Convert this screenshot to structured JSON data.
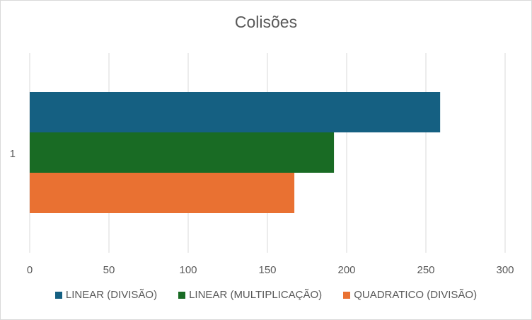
{
  "chart_data": {
    "type": "bar",
    "orientation": "horizontal",
    "title": "Colisões",
    "categories": [
      "1"
    ],
    "series": [
      {
        "name": "LINEAR (DIVISÃO)",
        "values": [
          259
        ],
        "color": "#156082"
      },
      {
        "name": "LINEAR (MULTIPLICAÇÃO)",
        "values": [
          192
        ],
        "color": "#196b24"
      },
      {
        "name": "QUADRATICO (DIVISÃO)",
        "values": [
          167
        ],
        "color": "#e97132"
      }
    ],
    "xlim": [
      0,
      300
    ],
    "xticks": [
      "0",
      "50",
      "100",
      "150",
      "200",
      "250",
      "300"
    ],
    "grid": true,
    "legend_position": "bottom"
  }
}
